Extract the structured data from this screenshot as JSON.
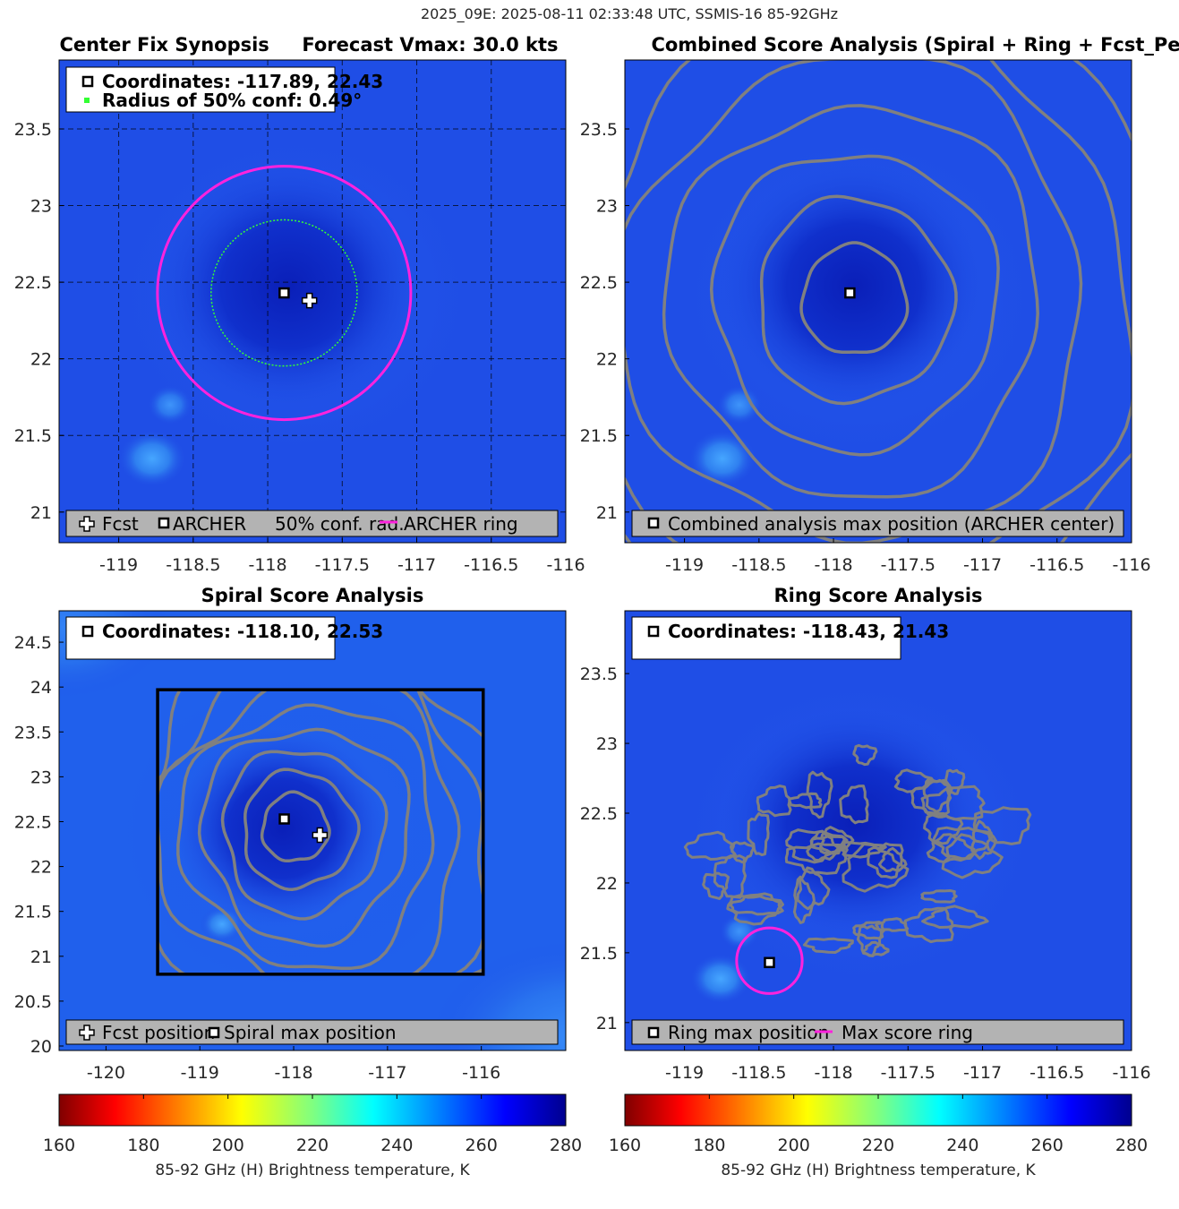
{
  "figure_title": "2025_09E: 2025-08-11 02:33:48 UTC, SSMIS-16 85-92GHz",
  "colors": {
    "background_field": "#1f4ee6",
    "contour": "#808080",
    "conf_ring": "#ff22dd",
    "conf_radius": "#33ff33",
    "legend_bg": "#b3b3b3",
    "box": "#000000"
  },
  "chart_data": [
    {
      "id": "synopsis",
      "type": "heatmap",
      "title": "Center Fix Synopsis     Forecast Vmax: 30.0 kts",
      "xlim": [
        -119.4,
        -116.0
      ],
      "ylim": [
        20.8,
        23.95
      ],
      "xticks": [
        "-119",
        "-118.5",
        "-118",
        "-117.5",
        "-117",
        "-116.5",
        "-116"
      ],
      "xtick_values": [
        -119,
        -118.5,
        -118,
        -117.5,
        -117,
        -116.5,
        -116
      ],
      "yticks": [
        "21",
        "21.5",
        "22",
        "22.5",
        "23",
        "23.5"
      ],
      "ytick_values": [
        21,
        21.5,
        22,
        22.5,
        23,
        23.5
      ],
      "archer_center": [
        -117.89,
        22.43
      ],
      "forecast_position": [
        -117.72,
        22.38
      ],
      "conf_radius_deg": 0.49,
      "ring_radius_deg": 0.85,
      "coord_lines": [
        "Coordinates: -117.89, 22.43",
        "Radius of 50% conf: 0.49°"
      ],
      "legend": [
        "Fcst",
        "ARCHER",
        "50% conf. rad.",
        "ARCHER ring"
      ]
    },
    {
      "id": "combined",
      "type": "heatmap",
      "title": "Combined Score Analysis (Spiral + Ring + Fcst_Pe",
      "xlim": [
        -119.4,
        -116.0
      ],
      "ylim": [
        20.8,
        23.95
      ],
      "xticks": [
        "-119",
        "-118.5",
        "-118",
        "-117.5",
        "-117",
        "-116.5",
        "-116"
      ],
      "xtick_values": [
        -119,
        -118.5,
        -118,
        -117.5,
        -117,
        -116.5,
        -116
      ],
      "yticks": [
        "21",
        "21.5",
        "22",
        "22.5",
        "23",
        "23.5"
      ],
      "ytick_values": [
        21,
        21.5,
        22,
        22.5,
        23,
        23.5
      ],
      "max_position": [
        -117.89,
        22.43
      ],
      "contour_radii_deg": [
        0.35,
        0.65,
        0.95,
        1.25,
        1.55,
        1.85,
        2.15
      ],
      "legend": [
        "Combined analysis max position (ARCHER center)"
      ]
    },
    {
      "id": "spiral",
      "type": "heatmap",
      "title": "Spiral Score Analysis",
      "xlim": [
        -120.5,
        -115.1
      ],
      "ylim": [
        19.95,
        24.85
      ],
      "xticks": [
        "-120",
        "-119",
        "-118",
        "-117",
        "-116"
      ],
      "xtick_values": [
        -120,
        -119,
        -118,
        -117,
        -116
      ],
      "yticks": [
        "20",
        "20.5",
        "21",
        "21.5",
        "22",
        "22.5",
        "23",
        "23.5",
        "24",
        "24.5"
      ],
      "ytick_values": [
        20,
        20.5,
        21,
        21.5,
        22,
        22.5,
        23,
        23.5,
        24,
        24.5
      ],
      "max_position": [
        -118.1,
        22.53
      ],
      "forecast_position": [
        -117.72,
        22.35
      ],
      "search_box": {
        "lon": [
          -119.45,
          -115.98
        ],
        "lat": [
          20.8,
          23.97
        ]
      },
      "contour_radii_deg": [
        0.35,
        0.6,
        0.85,
        1.1,
        1.35,
        1.6,
        1.85,
        2.1
      ],
      "coord_lines": [
        "Coordinates: -118.10, 22.53"
      ],
      "legend": [
        "Fcst position",
        "Spiral max position"
      ]
    },
    {
      "id": "ring",
      "type": "heatmap",
      "title": "Ring Score Analysis",
      "xlim": [
        -119.4,
        -116.0
      ],
      "ylim": [
        20.8,
        23.95
      ],
      "xticks": [
        "-119",
        "-118.5",
        "-118",
        "-117.5",
        "-117",
        "-116.5",
        "-116"
      ],
      "xtick_values": [
        -119,
        -118.5,
        -118,
        -117.5,
        -117,
        -116.5,
        -116
      ],
      "yticks": [
        "21",
        "21.5",
        "22",
        "22.5",
        "23",
        "23.5"
      ],
      "ytick_values": [
        21,
        21.5,
        22,
        22.5,
        23,
        23.5
      ],
      "max_position": [
        -118.43,
        21.43
      ],
      "max_ring_radius_deg": 0.22,
      "coord_lines": [
        "Coordinates: -118.43, 21.43"
      ],
      "legend": [
        "Ring max position",
        "Max score ring"
      ]
    }
  ],
  "colorbars": [
    {
      "label": "85-92 GHz (H) Brightness temperature, K",
      "range": [
        160,
        280
      ],
      "ticks": [
        "160",
        "180",
        "200",
        "220",
        "240",
        "260",
        "280"
      ]
    },
    {
      "label": "85-92 GHz (H) Brightness temperature, K",
      "range": [
        160,
        280
      ],
      "ticks": [
        "160",
        "180",
        "200",
        "220",
        "240",
        "260",
        "280"
      ]
    }
  ]
}
